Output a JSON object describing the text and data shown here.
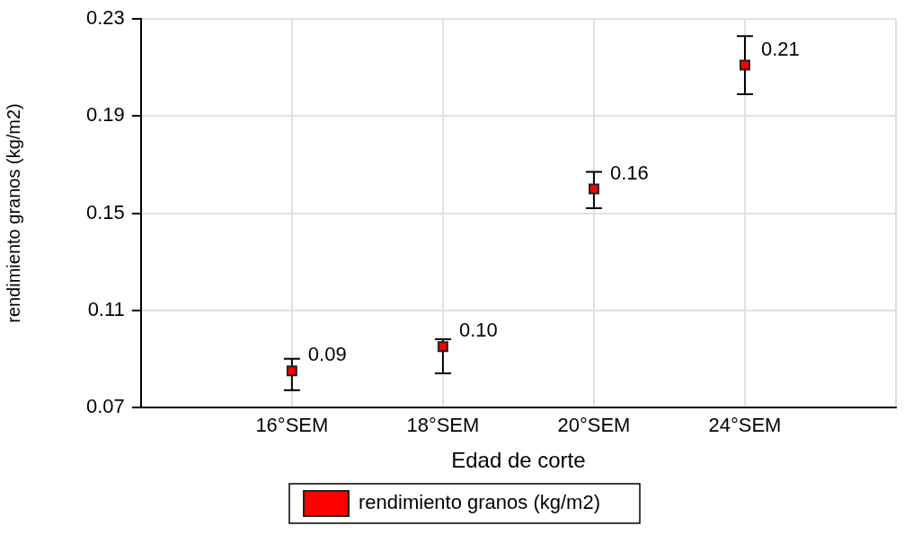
{
  "chart_data": {
    "type": "scatter",
    "xlabel": "Edad de corte",
    "ylabel": "rendimiento granos (kg/m2)",
    "categories": [
      null,
      "16°SEM",
      "18°SEM",
      "20°SEM",
      "24°SEM",
      null
    ],
    "series": [
      {
        "name": "rendimiento granos (kg/m2)",
        "color": "#ff0000",
        "values": [
          null,
          0.085,
          0.095,
          0.16,
          0.211,
          null
        ],
        "errors": [
          null,
          [
            0.077,
            0.09
          ],
          [
            0.084,
            0.098
          ],
          [
            0.152,
            0.167
          ],
          [
            0.199,
            0.223
          ],
          null
        ],
        "value_labels": [
          null,
          "0.09",
          "0.10",
          "0.16",
          "0.21",
          null
        ]
      }
    ],
    "ylim": [
      0.07,
      0.23
    ],
    "yticks": [
      0.07,
      0.11,
      0.15,
      0.19,
      0.23
    ],
    "grid": true,
    "legend": "bottom",
    "marker": "square"
  }
}
